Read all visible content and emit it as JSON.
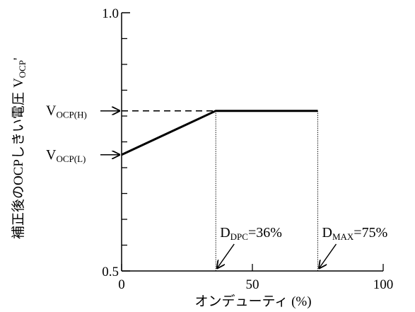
{
  "chart_data": {
    "type": "line",
    "title": "",
    "xlabel": "オンデューティ (%)",
    "ylabel": "補正後のOCPしきい電圧 VOCP'",
    "ylabel_main": "補正後のOCPしきい電圧",
    "ylabel_sym": "V",
    "ylabel_sub": "OCP",
    "ylabel_prime": "'",
    "xlim": [
      0,
      100
    ],
    "ylim": [
      0.5,
      1.0
    ],
    "x_ticks": [
      {
        "value": 0,
        "label": "0"
      },
      {
        "value": 50,
        "label": "50"
      },
      {
        "value": 100,
        "label": "100"
      }
    ],
    "y_tick_labels": [
      {
        "value": 1.0,
        "label": "1.0"
      },
      {
        "value": 0.5,
        "label": "0.5"
      }
    ],
    "y_minor_ticks": [
      0.55,
      0.6,
      0.65,
      0.7,
      0.75,
      0.8,
      0.85,
      0.9,
      0.95
    ],
    "series": [
      {
        "x": [
          0,
          36,
          75
        ],
        "y": [
          0.725,
          0.81,
          0.81
        ]
      }
    ],
    "reference_lines": [
      {
        "type": "horizontal-dashed",
        "y": 0.81,
        "x_from": 0,
        "x_to": 36
      },
      {
        "type": "vertical-dotted",
        "x": 36,
        "y_from": 0.5,
        "y_to": 0.81
      },
      {
        "type": "vertical-dotted",
        "x": 75,
        "y_from": 0.5,
        "y_to": 0.81
      }
    ],
    "annotations": [
      {
        "name": "vocp-h",
        "main": "V",
        "sub": "OCP(H)",
        "rest": "",
        "target_x": 0,
        "target_y": 0.81
      },
      {
        "name": "vocp-l",
        "main": "V",
        "sub": "OCP(L)",
        "rest": "",
        "target_x": 0,
        "target_y": 0.725
      },
      {
        "name": "d-dpc",
        "main": "D",
        "sub": "DPC",
        "rest": "=36%",
        "target_x": 36,
        "target_y": 0.5
      },
      {
        "name": "d-max",
        "main": "D",
        "sub": "MAX",
        "rest": "=75%",
        "target_x": 75,
        "target_y": 0.5
      }
    ]
  }
}
